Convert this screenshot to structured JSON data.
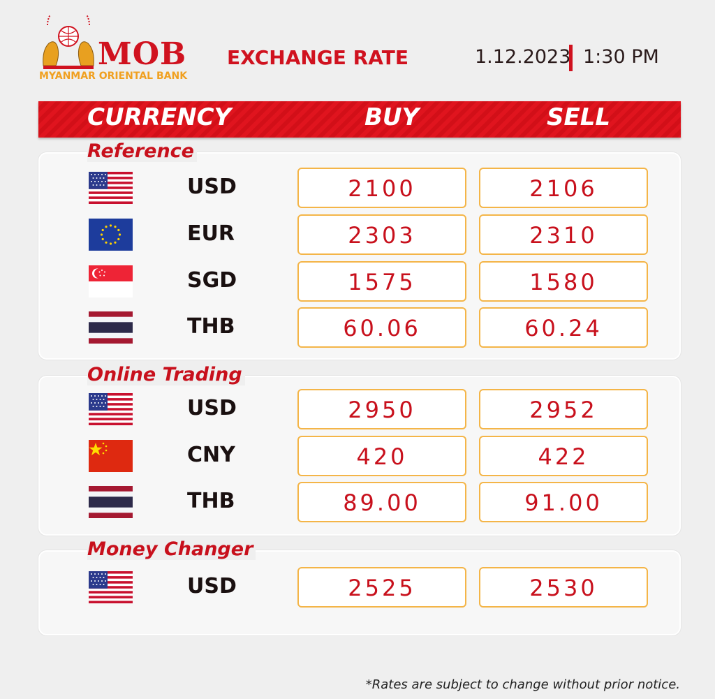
{
  "header": {
    "bank_name": "MOB",
    "bank_full_name": "MYANMAR ORIENTAL BANK",
    "title": "EXCHANGE RATE",
    "date": "1.12.2023",
    "time": "1:30 PM"
  },
  "table": {
    "columns": [
      "CURRENCY",
      "BUY",
      "SELL"
    ],
    "sections": [
      {
        "title": "Reference",
        "rows": [
          {
            "currency": "USD",
            "buy": "2100",
            "sell": "2106"
          },
          {
            "currency": "EUR",
            "buy": "2303",
            "sell": "2310"
          },
          {
            "currency": "SGD",
            "buy": "1575",
            "sell": "1580"
          },
          {
            "currency": "THB",
            "buy": "60.06",
            "sell": "60.24"
          }
        ]
      },
      {
        "title": "Online Trading",
        "rows": [
          {
            "currency": "USD",
            "buy": "2950",
            "sell": "2952"
          },
          {
            "currency": "CNY",
            "buy": "420",
            "sell": "422"
          },
          {
            "currency": "THB",
            "buy": "89.00",
            "sell": "91.00"
          }
        ]
      },
      {
        "title": "Money Changer",
        "rows": [
          {
            "currency": "USD",
            "buy": "2525",
            "sell": "2530"
          }
        ]
      }
    ]
  },
  "footer": {
    "note": "*Rates are subject to change without prior notice."
  }
}
